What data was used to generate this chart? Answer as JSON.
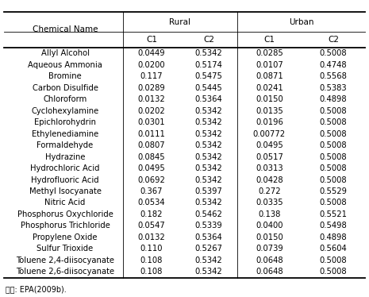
{
  "footnote": "자료: EPA(2009b).",
  "rows": [
    [
      "Allyl Alcohol",
      "0.0449",
      "0.5342",
      "0.0285",
      "0.5008"
    ],
    [
      "Aqueous Ammonia",
      "0.0200",
      "0.5174",
      "0.0107",
      "0.4748"
    ],
    [
      "Bromine",
      "0.117",
      "0.5475",
      "0.0871",
      "0.5568"
    ],
    [
      "Carbon Disulfide",
      "0.0289",
      "0.5445",
      "0.0241",
      "0.5383"
    ],
    [
      "Chloroform",
      "0.0132",
      "0.5364",
      "0.0150",
      "0.4898"
    ],
    [
      "Cyclohexylamine",
      "0.0202",
      "0.5342",
      "0.0135",
      "0.5008"
    ],
    [
      "Epichlorohydrin",
      "0.0301",
      "0.5342",
      "0.0196",
      "0.5008"
    ],
    [
      "Ethylenediamine",
      "0.0111",
      "0.5342",
      "0.00772",
      "0.5008"
    ],
    [
      "Formaldehyde",
      "0.0807",
      "0.5342",
      "0.0495",
      "0.5008"
    ],
    [
      "Hydrazine",
      "0.0845",
      "0.5342",
      "0.0517",
      "0.5008"
    ],
    [
      "Hydrochloric Acid",
      "0.0495",
      "0.5342",
      "0.0313",
      "0.5008"
    ],
    [
      "Hydrofluoric Acid",
      "0.0692",
      "0.5342",
      "0.0428",
      "0.5008"
    ],
    [
      "Methyl Isocyanate",
      "0.367",
      "0.5397",
      "0.272",
      "0.5529"
    ],
    [
      "Nitric Acid",
      "0.0534",
      "0.5342",
      "0.0335",
      "0.5008"
    ],
    [
      "Phosphorus Oxychloride",
      "0.182",
      "0.5462",
      "0.138",
      "0.5521"
    ],
    [
      "Phosphorus Trichloride",
      "0.0547",
      "0.5339",
      "0.0400",
      "0.5498"
    ],
    [
      "Propylene Oxide",
      "0.0132",
      "0.5364",
      "0.0150",
      "0.4898"
    ],
    [
      "Sulfur Trioxide",
      "0.110",
      "0.5267",
      "0.0739",
      "0.5604"
    ],
    [
      "Toluene 2,4-diisocyanate",
      "0.108",
      "0.5342",
      "0.0648",
      "0.5008"
    ],
    [
      "Toluene 2,6-diisocyanate",
      "0.108",
      "0.5342",
      "0.0648",
      "0.5008"
    ]
  ],
  "bg_color": "#ffffff",
  "text_color": "#000000",
  "font_size": 7.2,
  "header_font_size": 7.5
}
